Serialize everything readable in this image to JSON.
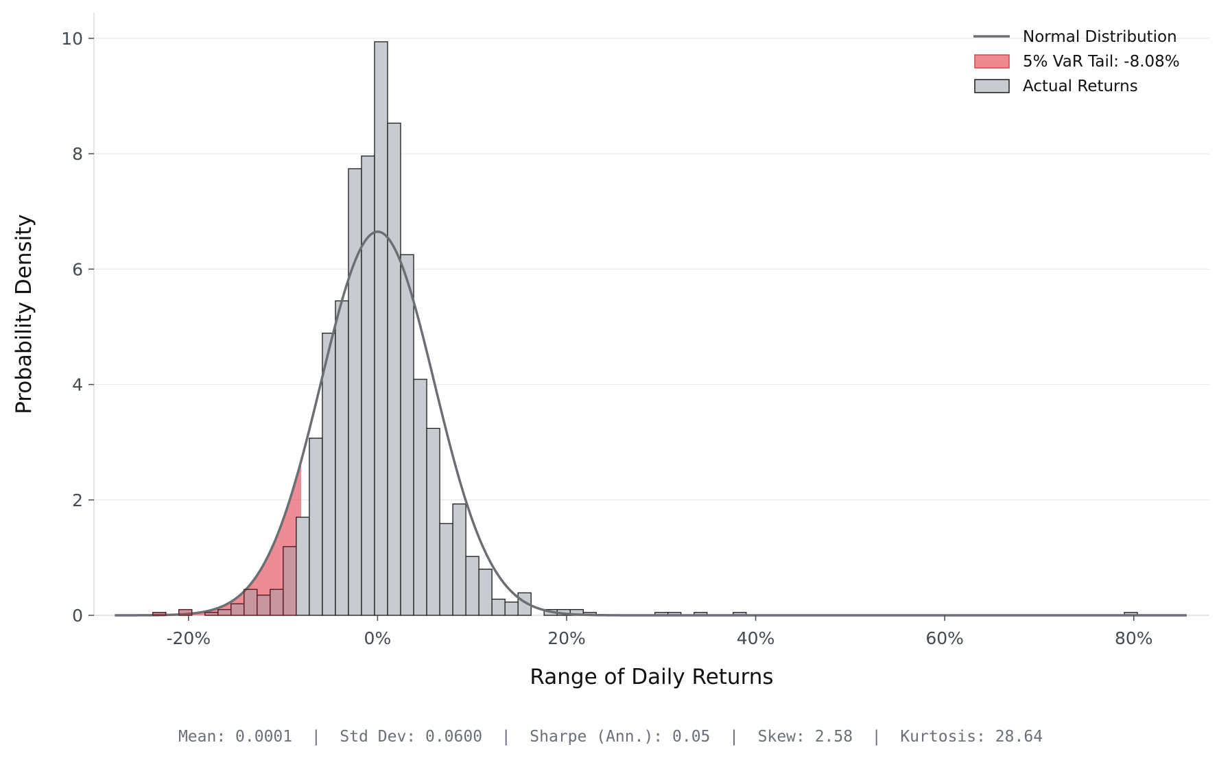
{
  "chart_data": {
    "type": "bar",
    "subtype": "histogram-with-normal-fit",
    "xlabel": "Range of Daily Returns",
    "ylabel": "Probability Density",
    "xlim": [
      -0.3,
      0.88
    ],
    "ylim": [
      0,
      10.45
    ],
    "x_ticks": [
      {
        "value": -0.2,
        "label": "-20%"
      },
      {
        "value": 0.0,
        "label": "0%"
      },
      {
        "value": 0.2,
        "label": "20%"
      },
      {
        "value": 0.4,
        "label": "40%"
      },
      {
        "value": 0.6,
        "label": "60%"
      },
      {
        "value": 0.8,
        "label": "80%"
      }
    ],
    "y_ticks": [
      {
        "value": 0,
        "label": "0"
      },
      {
        "value": 2,
        "label": "2"
      },
      {
        "value": 4,
        "label": "4"
      },
      {
        "value": 6,
        "label": "6"
      },
      {
        "value": 8,
        "label": "8"
      },
      {
        "value": 10,
        "label": "10"
      }
    ],
    "grid": "horizontal",
    "legend_position": "top-right",
    "legend": [
      {
        "label": "Normal Distribution",
        "type": "line",
        "color": "#6b6e73"
      },
      {
        "label": "5% VaR Tail: -8.08%",
        "type": "patch",
        "color": "#e8606c"
      },
      {
        "label": "Actual Returns",
        "type": "patch",
        "color": "#c8ccd1"
      }
    ],
    "bin_width": 0.0138,
    "histogram": {
      "name": "Actual Returns",
      "color": "#c8ccd1",
      "bins": [
        {
          "x0": -0.2516,
          "density": 0.0
        },
        {
          "x0": -0.2378,
          "density": 0.05
        },
        {
          "x0": -0.224,
          "density": 0.0
        },
        {
          "x0": -0.2102,
          "density": 0.1
        },
        {
          "x0": -0.1964,
          "density": 0.0
        },
        {
          "x0": -0.1826,
          "density": 0.05
        },
        {
          "x0": -0.1688,
          "density": 0.1
        },
        {
          "x0": -0.155,
          "density": 0.2
        },
        {
          "x0": -0.1412,
          "density": 0.45
        },
        {
          "x0": -0.1274,
          "density": 0.35
        },
        {
          "x0": -0.1136,
          "density": 0.45
        },
        {
          "x0": -0.0998,
          "density": 1.19
        },
        {
          "x0": -0.086,
          "density": 1.7
        },
        {
          "x0": -0.0722,
          "density": 3.07
        },
        {
          "x0": -0.0584,
          "density": 4.89
        },
        {
          "x0": -0.0446,
          "density": 5.45
        },
        {
          "x0": -0.0308,
          "density": 7.74
        },
        {
          "x0": -0.017,
          "density": 7.96
        },
        {
          "x0": -0.0032,
          "density": 9.94
        },
        {
          "x0": 0.0106,
          "density": 8.53
        },
        {
          "x0": 0.0244,
          "density": 6.25
        },
        {
          "x0": 0.0382,
          "density": 4.09
        },
        {
          "x0": 0.052,
          "density": 3.24
        },
        {
          "x0": 0.0658,
          "density": 1.59
        },
        {
          "x0": 0.0796,
          "density": 1.93
        },
        {
          "x0": 0.0934,
          "density": 1.02
        },
        {
          "x0": 0.1072,
          "density": 0.8
        },
        {
          "x0": 0.121,
          "density": 0.28
        },
        {
          "x0": 0.1348,
          "density": 0.23
        },
        {
          "x0": 0.1486,
          "density": 0.39
        },
        {
          "x0": 0.1624,
          "density": 0.0
        },
        {
          "x0": 0.1762,
          "density": 0.1
        },
        {
          "x0": 0.19,
          "density": 0.1
        },
        {
          "x0": 0.2038,
          "density": 0.1
        },
        {
          "x0": 0.2176,
          "density": 0.05
        },
        {
          "x0": 0.2934,
          "density": 0.05
        },
        {
          "x0": 0.3072,
          "density": 0.05
        },
        {
          "x0": 0.3348,
          "density": 0.05
        },
        {
          "x0": 0.3762,
          "density": 0.05
        },
        {
          "x0": 0.79,
          "density": 0.05
        }
      ]
    },
    "normal_fit": {
      "name": "Normal Distribution",
      "color": "#6b6e73",
      "mean": 0.0001,
      "std": 0.06,
      "x_range": [
        -0.278,
        0.856
      ]
    },
    "var_tail": {
      "name": "5% VaR Tail: -8.08%",
      "threshold": -0.0808,
      "color": "#e8606c"
    },
    "stats_text": "Mean: 0.0001  |  Std Dev: 0.0600  |  Sharpe (Ann.): 0.05  |  Skew: 2.58  |  Kurtosis: 28.64"
  }
}
